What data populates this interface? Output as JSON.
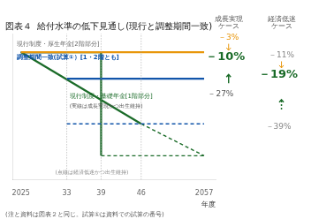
{
  "chart_data": {
    "type": "line",
    "title": "図表４  給付水準の低下見通し(現行と調整期間一致)",
    "footer": "(注と資料は図表２と同じ。試算①は資料での試算の番号)",
    "x_label": "年度",
    "xlim": [
      2023.5,
      2059
    ],
    "ylim": [
      52,
      107
    ],
    "xticks": [
      2025,
      {
        "value": 2033,
        "label": "33"
      },
      {
        "value": 2039,
        "label": "39"
      },
      {
        "value": 2046,
        "label": "46"
      },
      2057
    ],
    "tick_labels": "x",
    "grid": false,
    "series": [
      {
        "color": "#999999",
        "line_style": "dotted",
        "x": [
          2033,
          2033
        ],
        "values": [
          52,
          107
        ]
      },
      {
        "color": "#999999",
        "line_style": "dotted",
        "x": [
          2039,
          2039
        ],
        "values": [
          52,
          107
        ]
      },
      {
        "color": "#999999",
        "line_style": "dotted",
        "x": [
          2046,
          2046
        ],
        "values": [
          52,
          107
        ]
      },
      {
        "color": "#E8960A",
        "line_style": "solid",
        "x": [
          2025,
          2057
        ],
        "values": [
          100,
          100
        ]
      },
      {
        "color": "#1155AA",
        "line_style": "solid",
        "x": [
          2025,
          2033
        ],
        "values": [
          100,
          100
        ]
      },
      {
        "color": "#1155AA",
        "line_style": "solid",
        "x": [
          2033,
          2057
        ],
        "values": [
          90,
          90
        ]
      },
      {
        "color": "#E8960A",
        "line_style": "dashed",
        "x": [
          2033,
          2057
        ],
        "values": [
          90,
          90
        ]
      },
      {
        "color": "#1155AA",
        "line_style": "dashed",
        "x": [
          2033,
          2057
        ],
        "values": [
          73,
          73
        ]
      },
      {
        "color": "#1A6B28",
        "line_style": "solid",
        "x": [
          2025,
          2046
        ],
        "values": [
          100,
          73
        ]
      },
      {
        "color": "#1A6B28",
        "line_style": "dashed",
        "x": [
          2046,
          2057
        ],
        "values": [
          73,
          61
        ]
      },
      {
        "color": "#1A6B28",
        "line_style": "solid",
        "x": [
          2025,
          2039,
          2039
        ],
        "values": [
          100,
          100,
          61
        ]
      },
      {
        "color": "#1A6B28",
        "line_style": "dashed",
        "x": [
          2039,
          2057
        ],
        "values": [
          61,
          61
        ]
      }
    ],
    "annotations": [
      {
        "text": "現行制度・厚生年金[2階部分]",
        "color": "#666666"
      },
      {
        "text": "調整期間一致(試算①）[1・2階とも]",
        "color": "#1155AA"
      },
      {
        "text": "現行制度・基礎年金[1階部分]",
        "color": "#1A6B28"
      },
      {
        "text": "(実線は成長実現かつ出生維持)",
        "color": "#555555"
      },
      {
        "text": "(点線は経済低迷かつ出生維持)",
        "color": "#888888"
      },
      {
        "text": "成長実現",
        "color": "#555555"
      },
      {
        "text": "ケース",
        "color": "#555555"
      },
      {
        "text": "経済低迷",
        "color": "#555555"
      },
      {
        "text": "ケース",
        "color": "#555555"
      },
      {
        "text": "－3%",
        "color": "#E8960A"
      },
      {
        "text": "－10%",
        "color": "#1A6B28"
      },
      {
        "text": "－27%",
        "color": "#555555"
      },
      {
        "text": "－11%",
        "color": "#888888"
      },
      {
        "text": "－19%",
        "color": "#1A6B28"
      },
      {
        "text": "－39%",
        "color": "#888888"
      }
    ]
  }
}
